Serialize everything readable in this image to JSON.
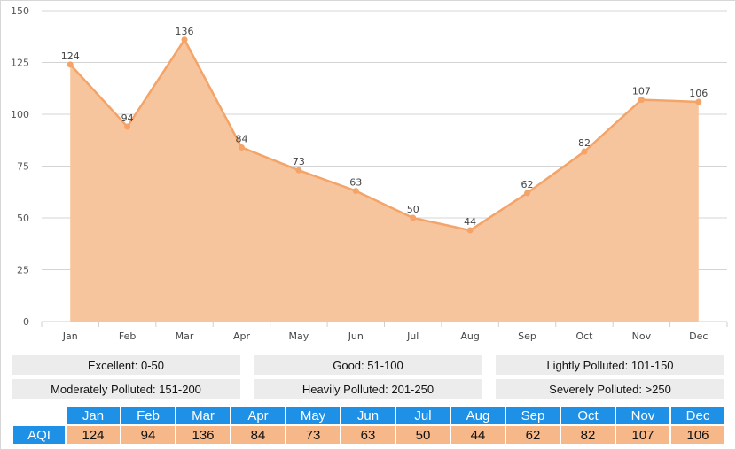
{
  "chart_data": {
    "type": "area",
    "categories": [
      "Jan",
      "Feb",
      "Mar",
      "Apr",
      "May",
      "Jun",
      "Jul",
      "Aug",
      "Sep",
      "Oct",
      "Nov",
      "Dec"
    ],
    "values": [
      124,
      94,
      136,
      84,
      73,
      63,
      50,
      44,
      62,
      82,
      107,
      106
    ],
    "ylim": [
      0,
      150
    ],
    "yticks": [
      0,
      25,
      50,
      75,
      100,
      125,
      150
    ],
    "grid": true,
    "colors": {
      "fill": "#f6c59d",
      "line": "#f4a468",
      "point": "#f4a468"
    }
  },
  "legend": [
    "Excellent: 0-50",
    "Good: 51-100",
    "Lightly Polluted: 101-150",
    "Moderately Polluted: 151-200",
    "Heavily Polluted: 201-250",
    "Severely Polluted: >250"
  ],
  "table": {
    "row_label": "AQI",
    "months": [
      "Jan",
      "Feb",
      "Mar",
      "Apr",
      "May",
      "Jun",
      "Jul",
      "Aug",
      "Sep",
      "Oct",
      "Nov",
      "Dec"
    ],
    "values": [
      "124",
      "94",
      "136",
      "84",
      "73",
      "63",
      "50",
      "44",
      "62",
      "82",
      "107",
      "106"
    ]
  }
}
